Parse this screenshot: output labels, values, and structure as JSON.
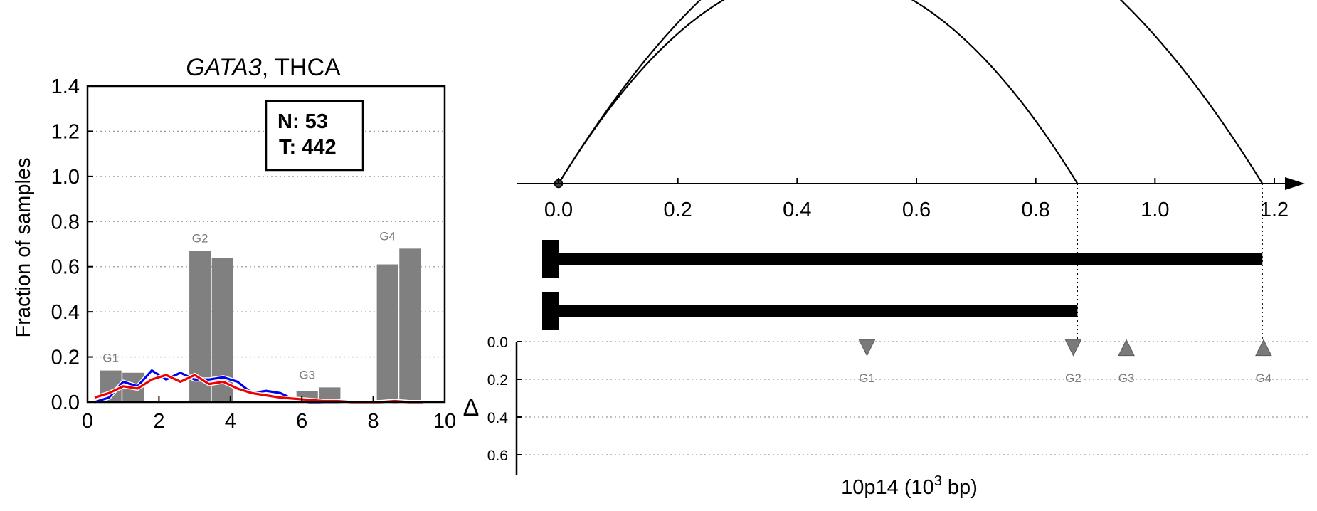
{
  "chart_data": [
    {
      "type": "bar",
      "title_gene": "GATA3",
      "title_sep": ",",
      "title_cancer": "THCA",
      "ylabel": "Fraction of samples",
      "xlim": [
        0,
        10
      ],
      "ylim": [
        0,
        1.4
      ],
      "xticks": [
        "0",
        "2",
        "4",
        "6",
        "8",
        "10"
      ],
      "yticks": [
        "0.0",
        "0.2",
        "0.4",
        "0.6",
        "0.8",
        "1.0",
        "1.2",
        "1.4"
      ],
      "grid": "horizontal dotted",
      "legend_box": {
        "line1": "N: 53",
        "line2": "T: 442"
      },
      "bar_groups": [
        {
          "label": "G1",
          "pairs": [
            {
              "x": 1.0,
              "normal": 0.14,
              "tumor": 0.13
            }
          ]
        },
        {
          "label": "G2",
          "pairs": [
            {
              "x": 3.5,
              "normal": 0.67,
              "tumor": 0.64
            }
          ]
        },
        {
          "label": "G3",
          "pairs": [
            {
              "x": 6.5,
              "normal": 0.05,
              "tumor": 0.065
            }
          ]
        },
        {
          "label": "G4",
          "pairs": [
            {
              "x": 8.75,
              "normal": 0.61,
              "tumor": 0.68
            }
          ]
        }
      ],
      "series": [
        {
          "color": "#0000ee",
          "x": [
            0.2,
            0.6,
            1.0,
            1.4,
            1.8,
            2.2,
            2.6,
            3.0,
            3.4,
            3.8,
            4.2,
            4.6,
            5.0,
            5.4,
            5.8,
            6.2,
            6.6,
            7.0,
            7.4,
            7.8,
            8.2,
            8.6,
            9.0,
            9.4
          ],
          "values": [
            0.0,
            0.02,
            0.09,
            0.07,
            0.14,
            0.1,
            0.13,
            0.1,
            0.1,
            0.11,
            0.09,
            0.04,
            0.05,
            0.04,
            0.01,
            0.0,
            0.0,
            0.0,
            0.0,
            0.0,
            0.0,
            0.0,
            0.0,
            0.0
          ]
        },
        {
          "color": "#ee0000",
          "x": [
            0.2,
            0.6,
            1.0,
            1.4,
            1.8,
            2.2,
            2.6,
            3.0,
            3.4,
            3.8,
            4.2,
            4.6,
            5.0,
            5.4,
            5.8,
            6.2,
            6.6,
            7.0,
            7.4,
            7.8,
            8.2,
            8.6,
            9.0,
            9.4
          ],
          "values": [
            0.02,
            0.04,
            0.07,
            0.06,
            0.1,
            0.12,
            0.09,
            0.12,
            0.08,
            0.09,
            0.06,
            0.04,
            0.03,
            0.02,
            0.015,
            0.01,
            0.005,
            0.005,
            0.0,
            0.0,
            0.0,
            0.005,
            0.0,
            0.0
          ]
        }
      ]
    },
    {
      "type": "line",
      "xticks": [
        "0.0",
        "0.2",
        "0.4",
        "0.6",
        "0.8",
        "1.0",
        "1.2"
      ],
      "xlim": [
        0,
        1.25
      ],
      "arcs": [
        {
          "start": 0.0,
          "end": 0.87
        },
        {
          "start": 0.0,
          "end": 1.18
        }
      ],
      "bars": [
        {
          "start": 0.0,
          "end": 1.18
        },
        {
          "start": 0.0,
          "end": 0.87
        }
      ],
      "delta_panel": {
        "ylabel": "Δ",
        "yticks": [
          "0.0",
          "0.2",
          "0.4",
          "0.6"
        ],
        "ylim": [
          0,
          0.7
        ],
        "markers": [
          {
            "label": "G1",
            "x": 0.517,
            "delta": 0.04,
            "direction": "down"
          },
          {
            "label": "G2",
            "x": 0.863,
            "delta": 0.04,
            "direction": "down"
          },
          {
            "label": "G3",
            "x": 0.952,
            "delta": 0.04,
            "direction": "up"
          },
          {
            "label": "G4",
            "x": 1.182,
            "delta": 0.04,
            "direction": "up"
          }
        ]
      },
      "xlabel_prefix": "10p14 (10",
      "xlabel_exp": "3",
      "xlabel_suffix": " bp)"
    }
  ],
  "colors": {
    "bar": "#808080",
    "marker": "#7a7a7a",
    "axis": "#000000",
    "normal_line": "#0000ee",
    "tumor_line": "#ee0000"
  }
}
